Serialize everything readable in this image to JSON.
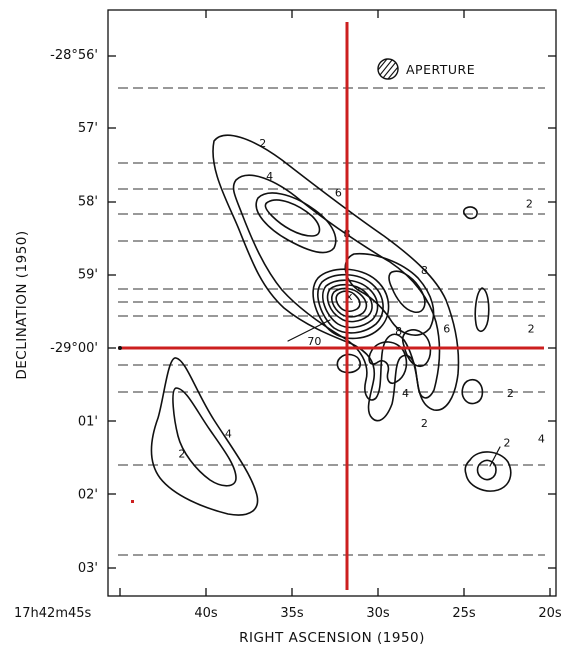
{
  "figure": {
    "x_axis_title": "RIGHT ASCENSION (1950)",
    "y_axis_title": "DECLINATION (1950)",
    "x_ticks": [
      {
        "ra_s": 45,
        "label": "17h42m45s"
      },
      {
        "ra_s": 40,
        "label": "40s"
      },
      {
        "ra_s": 35,
        "label": "35s"
      },
      {
        "ra_s": 30,
        "label": "30s"
      },
      {
        "ra_s": 25,
        "label": "25s"
      },
      {
        "ra_s": 20,
        "label": "20s"
      }
    ],
    "y_ticks": [
      {
        "dec_min": 4,
        "label": "-28°56'"
      },
      {
        "dec_min": 3,
        "label": "57'"
      },
      {
        "dec_min": 2,
        "label": "58'"
      },
      {
        "dec_min": 1,
        "label": "59'"
      },
      {
        "dec_min": 0,
        "label": "-29°00'"
      },
      {
        "dec_min": -1,
        "label": "01'"
      },
      {
        "dec_min": -2,
        "label": "02'"
      },
      {
        "dec_min": -3,
        "label": "03'"
      }
    ],
    "aperture_label": "APERTURE",
    "peak_marker": "x",
    "contour_labels": [
      {
        "text": "2",
        "ra": 36.7,
        "dec": 2.78
      },
      {
        "text": "4",
        "ra": 36.3,
        "dec": 2.33
      },
      {
        "text": "6",
        "ra": 32.3,
        "dec": 2.11
      },
      {
        "text": "8",
        "ra": 31.8,
        "dec": 1.55
      },
      {
        "text": "8",
        "ra": 27.3,
        "dec": 1.05
      },
      {
        "text": "70",
        "ra": 33.7,
        "dec": 0.08
      },
      {
        "text": "6",
        "ra": 26.0,
        "dec": 0.25
      },
      {
        "text": "8",
        "ra": 28.8,
        "dec": 0.22
      },
      {
        "text": "2",
        "ra": 21.2,
        "dec": 1.96
      },
      {
        "text": "2",
        "ra": 21.1,
        "dec": 0.25
      },
      {
        "text": "2",
        "ra": 22.3,
        "dec": -0.63
      },
      {
        "text": "4",
        "ra": 28.4,
        "dec": -0.63
      },
      {
        "text": "2",
        "ra": 27.3,
        "dec": -1.04
      },
      {
        "text": "4",
        "ra": 38.7,
        "dec": -1.18
      },
      {
        "text": "2",
        "ra": 41.4,
        "dec": -1.45
      },
      {
        "text": "2",
        "ra": 22.5,
        "dec": -1.3
      },
      {
        "text": "4",
        "ra": 20.5,
        "dec": -1.25
      }
    ]
  }
}
